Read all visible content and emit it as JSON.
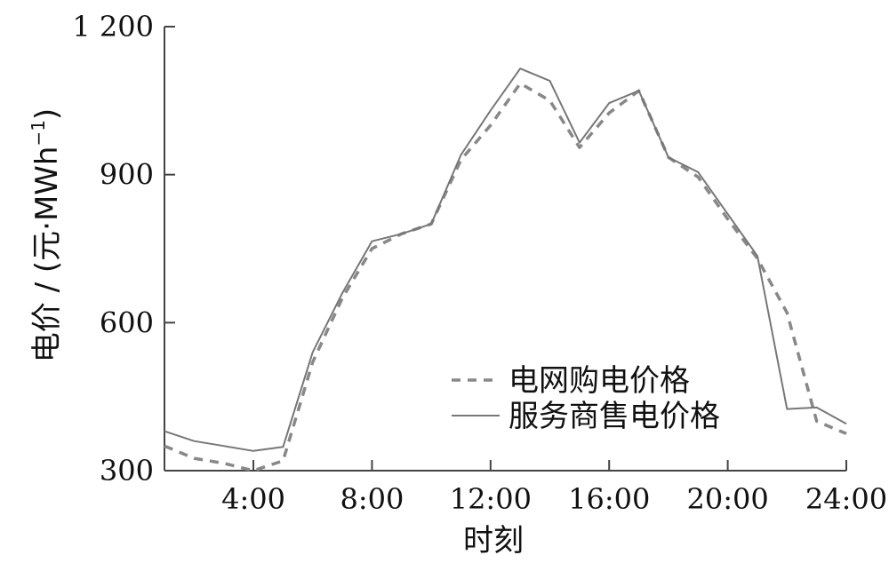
{
  "chart_data": {
    "type": "line",
    "xlabel": "时刻",
    "ylabel": "电价 / (元·MWh",
    "ylabel_sup": "−1",
    "ylabel_close": ")",
    "xlim": [
      1,
      24
    ],
    "ylim": [
      300,
      1200
    ],
    "x_ticks": [
      4,
      8,
      12,
      16,
      20,
      24
    ],
    "x_tick_labels": [
      "4:00",
      "8:00",
      "12:00",
      "16:00",
      "20:00",
      "24:00"
    ],
    "y_ticks": [
      300,
      600,
      900,
      1200
    ],
    "y_tick_labels": [
      "300",
      "600",
      "900",
      "1 200"
    ],
    "grid": false,
    "legend_position": "bottom-right",
    "x": [
      1,
      2,
      3,
      4,
      5,
      6,
      7,
      8,
      9,
      10,
      11,
      12,
      13,
      14,
      15,
      16,
      17,
      18,
      19,
      20,
      21,
      22,
      23,
      24
    ],
    "series": [
      {
        "name": "电网购电价格",
        "style": "dashed",
        "color": "#888888",
        "values": [
          350,
          325,
          315,
          300,
          320,
          520,
          650,
          750,
          780,
          800,
          930,
          1000,
          1085,
          1050,
          955,
          1025,
          1070,
          935,
          895,
          810,
          730,
          620,
          400,
          375
        ]
      },
      {
        "name": "服务商售电价格",
        "style": "solid",
        "color": "#777777",
        "values": [
          380,
          360,
          350,
          340,
          348,
          540,
          660,
          765,
          780,
          800,
          940,
          1030,
          1115,
          1090,
          965,
          1045,
          1070,
          935,
          905,
          820,
          735,
          425,
          428,
          395
        ]
      }
    ]
  }
}
